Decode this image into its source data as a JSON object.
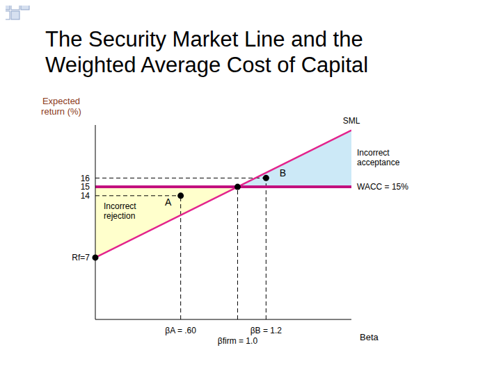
{
  "chart_data": {
    "type": "line",
    "title": "The Security Market Line and the Weighted Average Cost of Capital",
    "y_label": "Expected return (%)",
    "x_label": "Beta",
    "xlim": [
      0,
      1.8
    ],
    "xticks": [
      {
        "value": 0.6,
        "label": "βA = .60"
      },
      {
        "value": 1,
        "label": "βfirm = 1.0"
      },
      {
        "value": 1.2,
        "label": "βB = 1.2"
      }
    ],
    "ylim": [
      0,
      22
    ],
    "yticks": [
      {
        "value": 7,
        "label": "Rf=7"
      },
      14,
      15,
      16
    ],
    "grid": false,
    "series": [
      {
        "name": "SML",
        "color": "#e3238c",
        "x": [
          0,
          1.8
        ],
        "values": [
          7,
          21.4
        ]
      },
      {
        "name": "WACC = 15%",
        "color": "#c2107e",
        "x": [
          0,
          1.8
        ],
        "values": [
          15,
          15
        ]
      }
    ],
    "points": [
      {
        "x": 0,
        "y": 7
      },
      {
        "name": "A",
        "x": 0.6,
        "y": 14
      },
      {
        "x": 1,
        "y": 15
      },
      {
        "name": "B",
        "x": 1.2,
        "y": 16
      }
    ],
    "regions": [
      {
        "label": "Incorrect rejection",
        "color": "#ffffcc"
      },
      {
        "label": "Incorrect acceptance",
        "color": "#cce9f7"
      }
    ]
  }
}
